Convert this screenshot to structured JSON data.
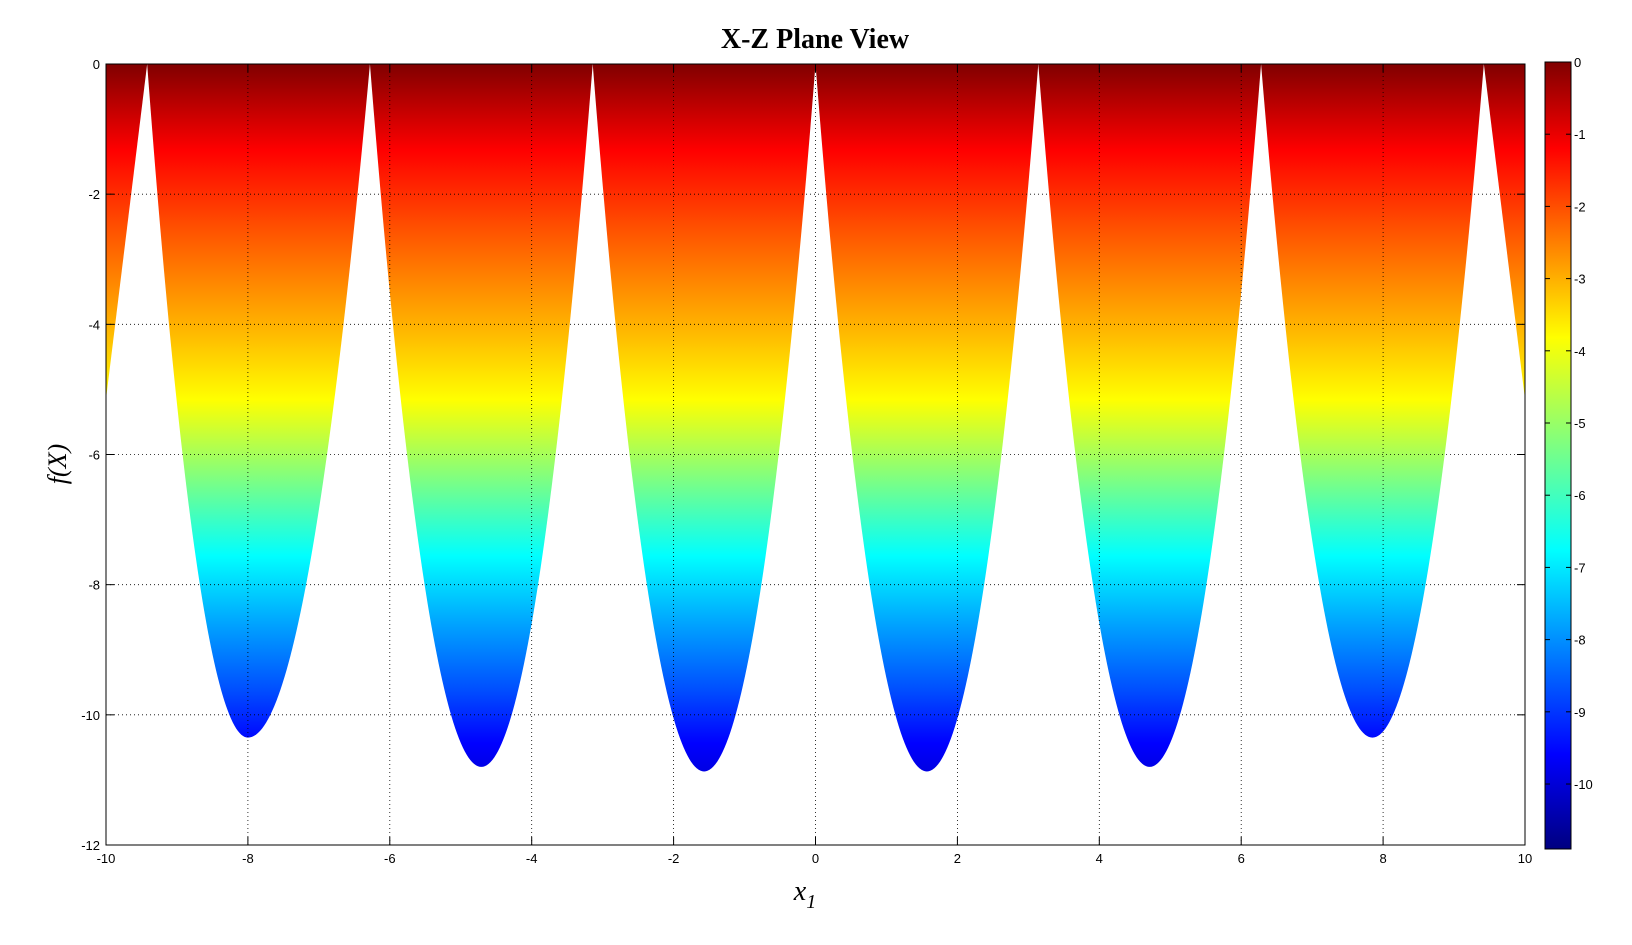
{
  "chart_data": {
    "type": "area",
    "title": "X-Z Plane View",
    "xlabel": "x",
    "xlabel_subscript": "1",
    "ylabel": "f(X)",
    "xlim": [
      -10,
      10
    ],
    "ylim": [
      -12,
      0
    ],
    "xticks": [
      -10,
      -8,
      -6,
      -4,
      -2,
      0,
      2,
      4,
      6,
      8,
      10
    ],
    "yticks": [
      0,
      -2,
      -4,
      -6,
      -8,
      -10,
      -12
    ],
    "grid": true,
    "grid_style": "dotted",
    "colormap": "jet",
    "colorbar": {
      "range": [
        -10.9,
        0
      ],
      "ticks": [
        0,
        -1,
        -2,
        -3,
        -4,
        -5,
        -6,
        -7,
        -8,
        -9,
        -10
      ],
      "position": "right"
    },
    "lobes": [
      {
        "x_min": -8.0,
        "y_min": -10.35,
        "x_left": -9.42,
        "x_right": -6.28
      },
      {
        "x_min": -4.71,
        "y_min": -10.8,
        "x_left": -6.28,
        "x_right": -3.14
      },
      {
        "x_min": -1.57,
        "y_min": -10.87,
        "x_left": -3.14,
        "x_right": 0.0
      },
      {
        "x_min": 1.57,
        "y_min": -10.87,
        "x_left": 0.0,
        "x_right": 3.14
      },
      {
        "x_min": 4.71,
        "y_min": -10.8,
        "x_left": 3.14,
        "x_right": 6.28
      },
      {
        "x_min": 7.85,
        "y_min": -10.35,
        "x_left": 6.28,
        "x_right": 9.42
      }
    ],
    "edge_lobes": [
      {
        "x_from": -10,
        "x_to": -9.42,
        "y_at_edge": -5.15
      },
      {
        "x_from": 9.42,
        "x_to": 10,
        "y_at_edge": -5.15
      }
    ]
  }
}
